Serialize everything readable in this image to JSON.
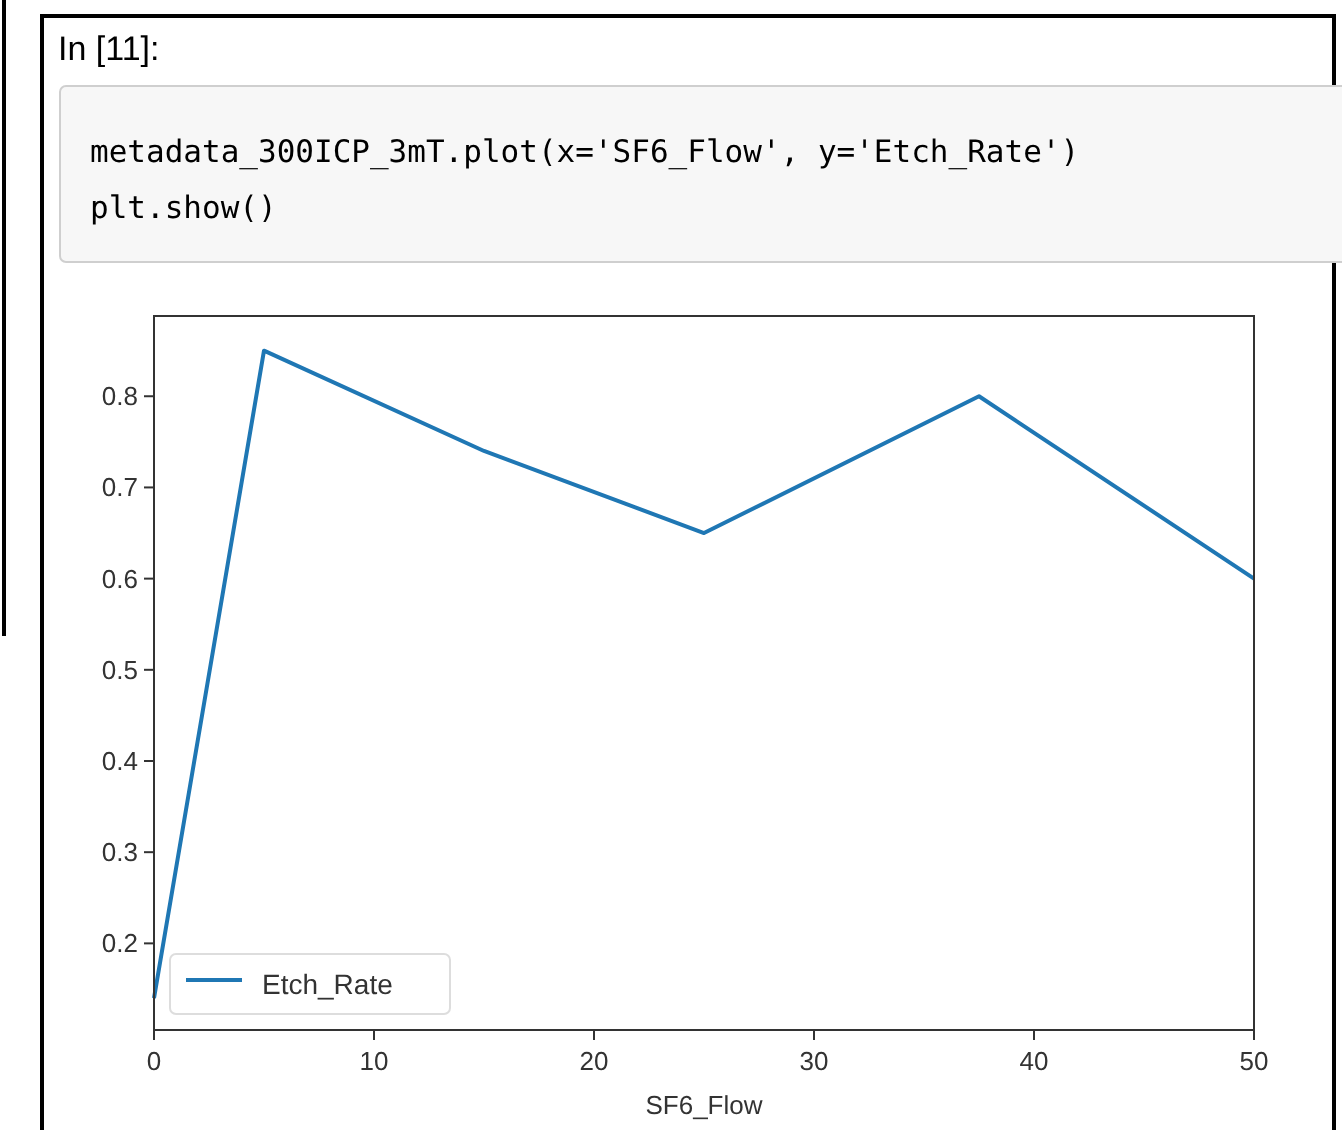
{
  "chart_data": {
    "type": "line",
    "annotations": [
      "In [11]:",
      "metadata_300ICP_3mT.plot(x='SF6_Flow', y='Etch_Rate')",
      "plt.show()"
    ],
    "xlabel": "SF6_Flow",
    "x": [
      0,
      5,
      15,
      25,
      37.5,
      50
    ],
    "series": [
      {
        "name": "Etch_Rate",
        "color": "#1f77b4",
        "values": [
          0.14,
          0.85,
          0.74,
          0.65,
          0.8,
          0.6
        ]
      }
    ],
    "xlim": [
      0,
      50
    ],
    "xticks": [
      0,
      10,
      20,
      30,
      40,
      50
    ],
    "ylim": [
      0.105,
      0.888
    ],
    "yticks": [
      0.2,
      0.3,
      0.4,
      0.5,
      0.6,
      0.7,
      0.8
    ],
    "legend": "bottom left",
    "grid": false,
    "marker": "none",
    "line_style": "solid"
  }
}
